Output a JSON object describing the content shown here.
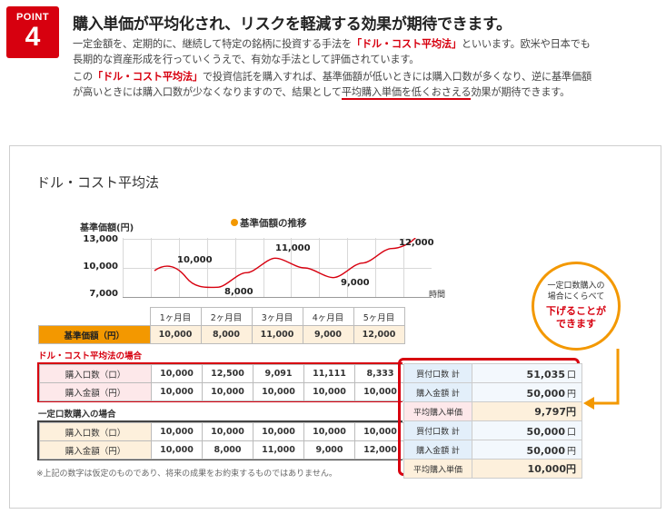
{
  "point": {
    "label": "POINT",
    "number": "4"
  },
  "headline": "購入単価が平均化され、リスクを軽減する効果が期待できます。",
  "paragraph": {
    "l1a": "一定金額を、定期的に、継続して特定の銘柄に投資する手法を",
    "l1b": "「ドル・コスト平均法」",
    "l1c": "といいます。欧米や日本でも",
    "l2": "長期的な資産形成を行っていくうえで、有効な手法として評価されています。",
    "l3a": "この",
    "l3b": "「ドル・コスト平均法」",
    "l3c": "で投資信託を購入すれば、基準価額が低いときには購入口数が多くなり、逆に基準価額",
    "l4a": "が高いときには購入口数が少なくなりますので、結果として",
    "l4b": "平均購入単価を低くおさえる",
    "l4c": "効果が期待できます。"
  },
  "panel_title": "ドル・コスト平均法",
  "chart_data": {
    "type": "line",
    "title": "基準価額の推移",
    "ylabel": "基準価額(円)",
    "xlabel": "時間",
    "ylim": [
      7000,
      13000
    ],
    "yticks": [
      "13,000",
      "10,000",
      "7,000"
    ],
    "categories": [
      "1ヶ月目",
      "2ヶ月目",
      "3ヶ月目",
      "4ヶ月目",
      "5ヶ月目"
    ],
    "values": [
      10000,
      8000,
      11000,
      9000,
      12000
    ],
    "value_labels": [
      "10,000",
      "8,000",
      "11,000",
      "9,000",
      "12,000"
    ],
    "grid": true,
    "colors": {
      "line": "#d7000f",
      "grid": "#d8d8d8",
      "legend_dot": "#f39800"
    }
  },
  "price_table": {
    "label": "基準価額（円）",
    "months": [
      "1ヶ月目",
      "2ヶ月目",
      "3ヶ月目",
      "4ヶ月目",
      "5ヶ月目"
    ],
    "values": [
      "10,000",
      "8,000",
      "11,000",
      "9,000",
      "12,000"
    ]
  },
  "dca": {
    "section_label": "ドル・コスト平均法の場合",
    "rows": [
      {
        "label": "購入口数（口）",
        "values": [
          "10,000",
          "12,500",
          "9,091",
          "11,111",
          "8,333"
        ]
      },
      {
        "label": "購入金額（円）",
        "values": [
          "10,000",
          "10,000",
          "10,000",
          "10,000",
          "10,000"
        ]
      }
    ],
    "summary": [
      {
        "label": "買付口数 計",
        "value": "51,035",
        "unit": "口"
      },
      {
        "label": "購入金額 計",
        "value": "50,000",
        "unit": "円"
      }
    ],
    "avg": {
      "label": "平均購入単価",
      "value": "9,797",
      "unit": "円"
    }
  },
  "fixed": {
    "section_label": "一定口数購入の場合",
    "rows": [
      {
        "label": "購入口数（口）",
        "values": [
          "10,000",
          "10,000",
          "10,000",
          "10,000",
          "10,000"
        ]
      },
      {
        "label": "購入金額（円）",
        "values": [
          "10,000",
          "8,000",
          "11,000",
          "9,000",
          "12,000"
        ]
      }
    ],
    "summary": [
      {
        "label": "買付口数 計",
        "value": "50,000",
        "unit": "口"
      },
      {
        "label": "購入金額 計",
        "value": "50,000",
        "unit": "円"
      }
    ],
    "avg": {
      "label": "平均購入単価",
      "value": "10,000",
      "unit": "円"
    }
  },
  "callout": {
    "line1": "一定口数購入の",
    "line2": "場合にくらべて",
    "line3": "下げることが",
    "line4": "できます"
  },
  "note": "※上記の数字は仮定のものであり、将来の成果をお約束するものではありません。",
  "colors": {
    "accent_red": "#d7000f",
    "accent_orange": "#f39800"
  }
}
